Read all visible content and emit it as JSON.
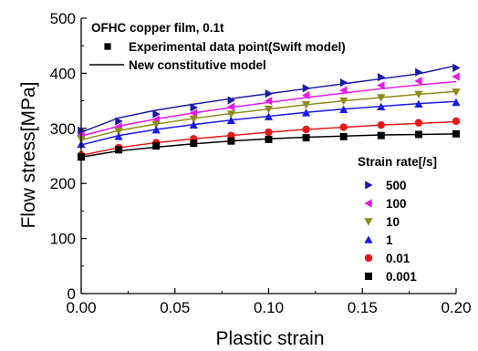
{
  "chart_data": {
    "type": "scatter",
    "note": "OFHC copper film, 0.1t",
    "xlabel": "Plastic strain",
    "ylabel": "Flow stress[MPa]",
    "xlim": [
      0.0,
      0.2
    ],
    "ylim": [
      0,
      500
    ],
    "xticks": [
      "0.00",
      "0.05",
      "0.10",
      "0.15",
      "0.20"
    ],
    "yticks": [
      "0",
      "100",
      "200",
      "300",
      "400",
      "500"
    ],
    "grid": false,
    "key": [
      {
        "marker": "square",
        "label": "Experimental data point(Swift model)"
      },
      {
        "marker": "line",
        "label": "New constitutive model"
      }
    ],
    "legend_title": "Strain rate[/s]",
    "legend_position": "lower-right",
    "x": [
      0.0,
      0.02,
      0.04,
      0.06,
      0.08,
      0.1,
      0.12,
      0.14,
      0.16,
      0.18,
      0.2
    ],
    "series": [
      {
        "name": "500",
        "marker": "triangle-right",
        "color": "#1a1aa6",
        "points": [
          296,
          313,
          326,
          338,
          351,
          363,
          373,
          383,
          393,
          402,
          410
        ],
        "fit": [
          293,
          319,
          333,
          344,
          354,
          363,
          372,
          381,
          390,
          399,
          414
        ]
      },
      {
        "name": "100",
        "marker": "triangle-left",
        "color": "#e619e6",
        "points": [
          287,
          303,
          316,
          328,
          339,
          350,
          360,
          369,
          378,
          386,
          394
        ],
        "fit": [
          286,
          304,
          317,
          328,
          338,
          347,
          356,
          364,
          372,
          379,
          385
        ]
      },
      {
        "name": "10",
        "marker": "triangle-down",
        "color": "#8c8c1a",
        "points": [
          280,
          295,
          307,
          317,
          326,
          335,
          343,
          350,
          356,
          362,
          366
        ],
        "fit": [
          279,
          296,
          308,
          318,
          327,
          335,
          343,
          350,
          356,
          362,
          367
        ]
      },
      {
        "name": "1",
        "marker": "triangle-up",
        "color": "#1a1ae6",
        "points": [
          271,
          285,
          297,
          306,
          314,
          321,
          328,
          334,
          339,
          344,
          347
        ],
        "fit": [
          270,
          287,
          298,
          307,
          315,
          322,
          329,
          335,
          340,
          345,
          349
        ]
      },
      {
        "name": "0.01",
        "marker": "circle",
        "color": "#e61919",
        "points": [
          252,
          265,
          274,
          281,
          287,
          293,
          298,
          302,
          306,
          310,
          313
        ],
        "fit": [
          251,
          265,
          274,
          281,
          287,
          293,
          298,
          302,
          306,
          309,
          312
        ]
      },
      {
        "name": "0.001",
        "marker": "square",
        "color": "#000000",
        "points": [
          248,
          261,
          268,
          273,
          277,
          280,
          283,
          285,
          287,
          289,
          290
        ],
        "fit": [
          248,
          259,
          266,
          272,
          277,
          281,
          284,
          286,
          288,
          289,
          290
        ]
      }
    ]
  }
}
